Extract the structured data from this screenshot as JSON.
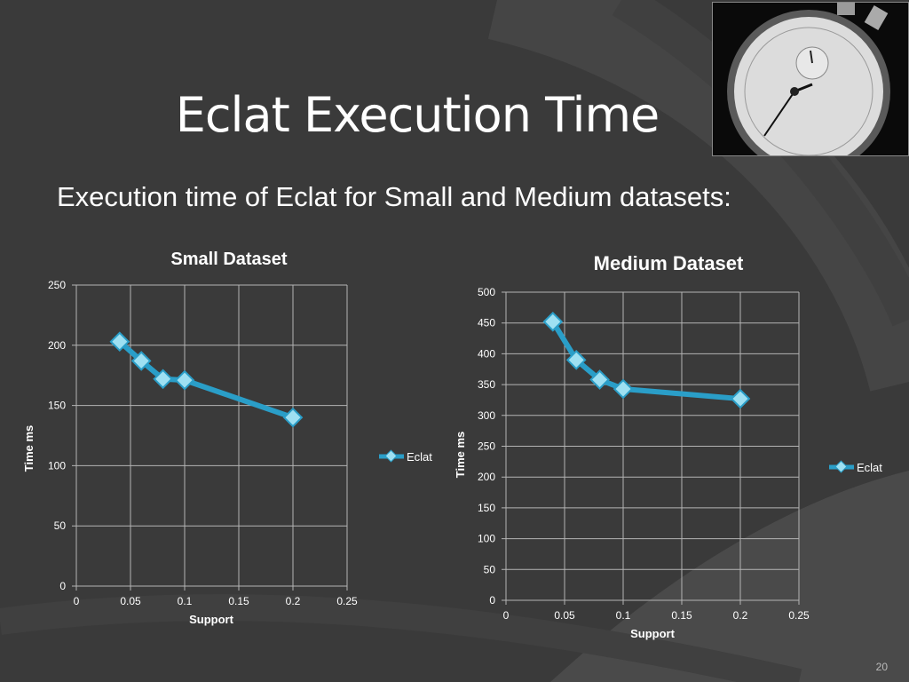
{
  "slide": {
    "title": "Eclat Execution Time",
    "subtitle": "Execution time of Eclat for Small and Medium datasets:",
    "page_number": "20"
  },
  "colors": {
    "background": "#3a3a3a",
    "series_line": "#2a9ec8",
    "marker_fill": "#9ee0f2",
    "grid": "#b4b4b4"
  },
  "image": {
    "name": "stopwatch-photo"
  },
  "chart_data": [
    {
      "type": "line",
      "title": "Small Dataset",
      "xlabel": "Support",
      "ylabel": "Time ms",
      "xlim": [
        0,
        0.25
      ],
      "ylim": [
        0,
        250
      ],
      "xticks": [
        0,
        0.05,
        0.1,
        0.15,
        0.2,
        0.25
      ],
      "xtick_labels": [
        "0",
        "0.05",
        "0.1",
        "0.15",
        "0.2",
        "0.25"
      ],
      "yticks": [
        0,
        50,
        100,
        150,
        200,
        250
      ],
      "ytick_labels": [
        "0",
        "50",
        "100",
        "150",
        "200",
        "250"
      ],
      "grid": true,
      "legend": "right",
      "series": [
        {
          "name": "Eclat",
          "x": [
            0.04,
            0.06,
            0.08,
            0.1,
            0.2
          ],
          "y": [
            203,
            187,
            172,
            171,
            140
          ]
        }
      ]
    },
    {
      "type": "line",
      "title": "Medium Dataset",
      "xlabel": "Support",
      "ylabel": "Time ms",
      "xlim": [
        0,
        0.25
      ],
      "ylim": [
        0,
        500
      ],
      "xticks": [
        0,
        0.05,
        0.1,
        0.15,
        0.2,
        0.25
      ],
      "xtick_labels": [
        "0",
        "0.05",
        "0.1",
        "0.15",
        "0.2",
        "0.25"
      ],
      "yticks": [
        0,
        50,
        100,
        150,
        200,
        250,
        300,
        350,
        400,
        450,
        500
      ],
      "ytick_labels": [
        "0",
        "50",
        "100",
        "150",
        "200",
        "250",
        "300",
        "350",
        "400",
        "450",
        "500"
      ],
      "grid": true,
      "legend": "right",
      "series": [
        {
          "name": "Eclat",
          "x": [
            0.04,
            0.06,
            0.08,
            0.1,
            0.2
          ],
          "y": [
            452,
            390,
            358,
            343,
            327
          ]
        }
      ]
    }
  ]
}
